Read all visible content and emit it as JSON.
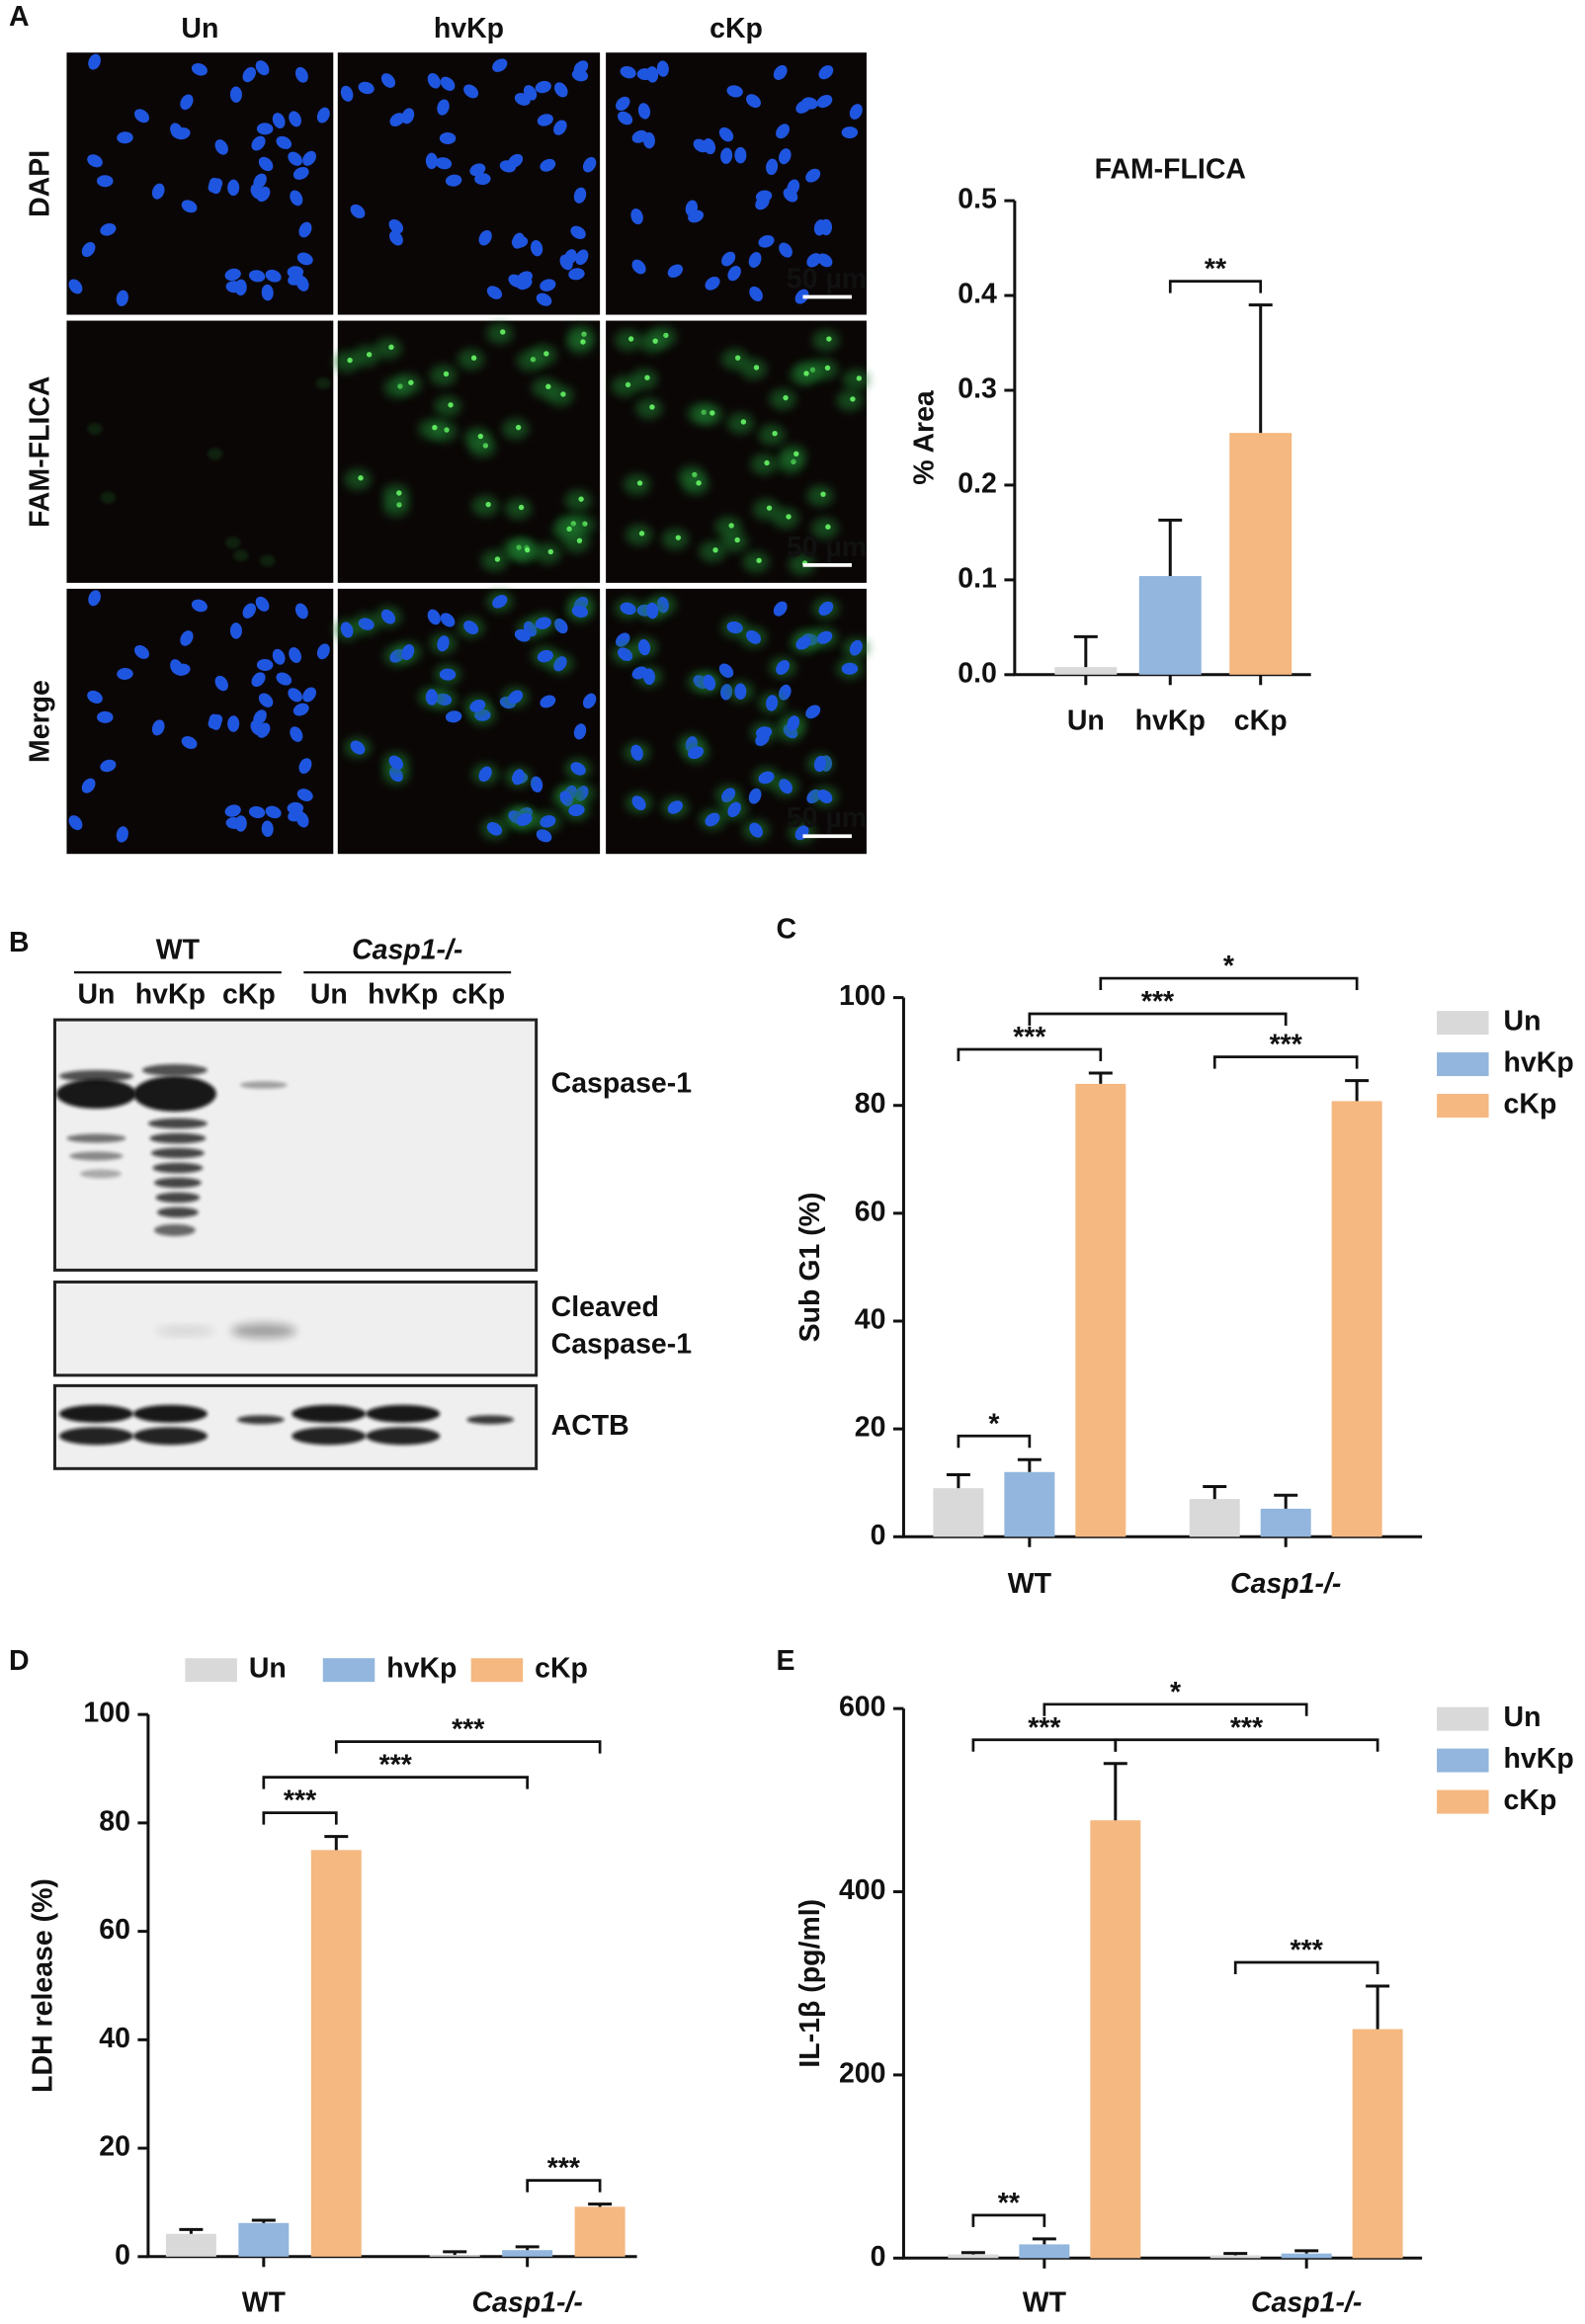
{
  "figure": {
    "panel_labels": [
      "A",
      "B",
      "C",
      "D",
      "E"
    ],
    "microscopy": {
      "columns": [
        "Un",
        "hvKp",
        "cKp"
      ],
      "rows": [
        "DAPI",
        "FAM-FLICA",
        "Merge"
      ],
      "scale_bar": "50 µm"
    },
    "blot": {
      "groups": [
        "WT",
        "Casp1-/-"
      ],
      "lanes": [
        "Un",
        "hvKp",
        "cKp",
        "Un",
        "hvKp",
        "cKp"
      ],
      "bands": [
        [
          "Caspase-1"
        ],
        [
          "Cleaved",
          "Caspase-1"
        ],
        [
          "ACTB"
        ]
      ]
    }
  },
  "chart_data": [
    {
      "type": "bar",
      "title": "FAM-FLICA",
      "y_label": "% Area",
      "categories": [
        "Un",
        "hvKp",
        "cKp"
      ],
      "values": [
        0.008,
        0.104,
        0.255
      ],
      "errors": [
        0.032,
        0.059,
        0.135
      ],
      "colors": [
        "#d9d9d9",
        "#92b6dd",
        "#f5b880"
      ],
      "ylim": [
        0,
        0.5
      ],
      "yticks": [
        {
          "value": 0,
          "label": "0.0"
        },
        0.1,
        0.2,
        0.3,
        0.4,
        0.5
      ],
      "annotations": [
        {
          "label": "**",
          "from": 1,
          "to": 2
        }
      ]
    },
    {
      "type": "grouped_bar",
      "y_label": "Sub G1 (%)",
      "categories": [
        "WT",
        "Casp1-/-"
      ],
      "legend": "right",
      "series": [
        {
          "name": "Un",
          "color": "#d9d9d9",
          "values": [
            9,
            7
          ],
          "errors": [
            2.5,
            2.3
          ]
        },
        {
          "name": "hvKp",
          "color": "#92b6dd",
          "values": [
            12,
            5.2
          ],
          "errors": [
            2.3,
            2.5
          ]
        },
        {
          "name": "cKp",
          "color": "#f5b880",
          "values": [
            84,
            80.8
          ],
          "errors": [
            2,
            3.8
          ]
        }
      ],
      "ylim": [
        0,
        100
      ],
      "yticks": [
        0,
        20,
        40,
        60,
        80,
        100
      ],
      "annotations": [
        {
          "label": "*",
          "from": [
            0,
            0
          ],
          "to": [
            0,
            1
          ]
        },
        {
          "label": "***",
          "from": [
            0,
            0
          ],
          "to": [
            0,
            2
          ]
        },
        {
          "label": "***",
          "from": [
            1,
            0
          ],
          "to": [
            1,
            2
          ]
        },
        {
          "label": "***",
          "from": [
            0,
            1
          ],
          "to": [
            1,
            1
          ]
        },
        {
          "label": "*",
          "from": [
            0,
            2
          ],
          "to": [
            1,
            2
          ]
        }
      ]
    },
    {
      "type": "grouped_bar",
      "y_label": "LDH release (%)",
      "categories": [
        "WT",
        "Casp1-/-"
      ],
      "legend": "top",
      "series": [
        {
          "name": "Un",
          "color": "#d9d9d9",
          "values": [
            4.2,
            0.3
          ],
          "errors": [
            0.8,
            0.6
          ]
        },
        {
          "name": "hvKp",
          "color": "#92b6dd",
          "values": [
            6.2,
            1.2
          ],
          "errors": [
            0.5,
            0.6
          ]
        },
        {
          "name": "cKp",
          "color": "#f5b880",
          "values": [
            75,
            9.2
          ],
          "errors": [
            2.5,
            0.5
          ]
        }
      ],
      "ylim": [
        0,
        100
      ],
      "yticks": [
        0,
        20,
        40,
        60,
        80,
        100
      ],
      "annotations": [
        {
          "label": "***",
          "from": [
            1,
            1
          ],
          "to": [
            1,
            2
          ]
        },
        {
          "label": "***",
          "from": [
            0,
            1
          ],
          "to": [
            0,
            2
          ]
        },
        {
          "label": "***",
          "from": [
            0,
            1
          ],
          "to": [
            1,
            1
          ]
        },
        {
          "label": "***",
          "from": [
            0,
            2
          ],
          "to": [
            1,
            2
          ]
        }
      ]
    },
    {
      "type": "grouped_bar",
      "y_label": "IL-1β (pg/ml)",
      "categories": [
        "WT",
        "Casp1-/-"
      ],
      "legend": "right",
      "series": [
        {
          "name": "Un",
          "color": "#d9d9d9",
          "values": [
            4,
            3
          ],
          "errors": [
            2,
            2
          ]
        },
        {
          "name": "hvKp",
          "color": "#92b6dd",
          "values": [
            15,
            5
          ],
          "errors": [
            6,
            3
          ]
        },
        {
          "name": "cKp",
          "color": "#f5b880",
          "values": [
            478,
            250
          ],
          "errors": [
            62,
            47
          ]
        }
      ],
      "ylim": [
        0,
        600
      ],
      "yticks": [
        0,
        200,
        400,
        600
      ],
      "annotations": [
        {
          "label": "**",
          "from": [
            0,
            0
          ],
          "to": [
            0,
            1
          ]
        },
        {
          "label": "***",
          "from": [
            1,
            0
          ],
          "to": [
            1,
            2
          ]
        },
        {
          "label": "***",
          "from": [
            0,
            0
          ],
          "to": [
            0,
            2
          ]
        },
        {
          "label": "***",
          "from": [
            0,
            2
          ],
          "to": [
            1,
            2
          ]
        },
        {
          "label": "*",
          "from": [
            0,
            1
          ],
          "to": [
            1,
            1
          ]
        }
      ]
    }
  ]
}
